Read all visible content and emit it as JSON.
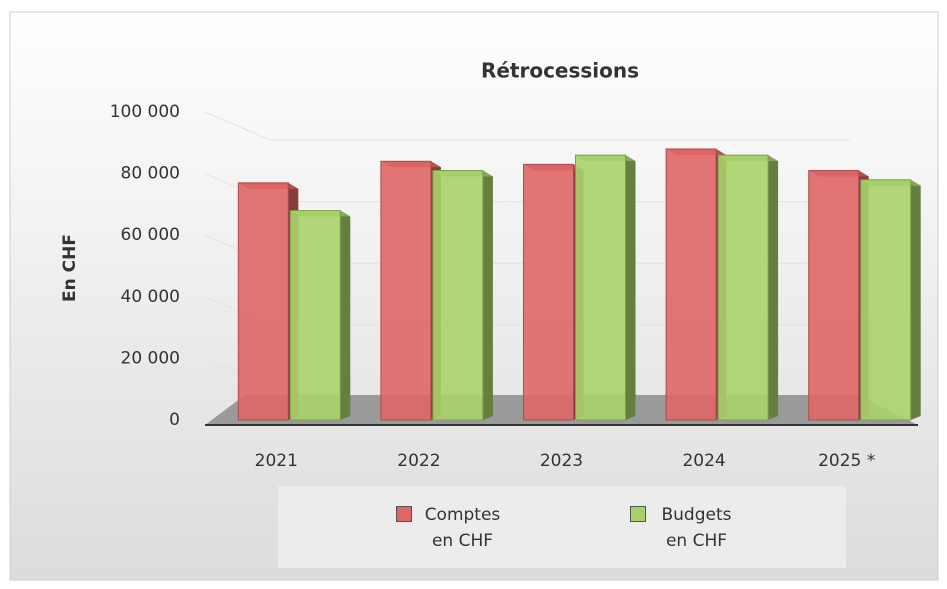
{
  "chart_data": {
    "type": "bar",
    "title": "Rétrocessions",
    "y_label": "En CHF",
    "categories": [
      "2021",
      "2022",
      "2023",
      "2024",
      "2025 *"
    ],
    "series": [
      {
        "name": "Comptes en CHF",
        "color": "#e06666",
        "values": [
          77000,
          84000,
          83000,
          88000,
          81000
        ]
      },
      {
        "name": "Budgets en CHF",
        "color": "#a9d36a",
        "values": [
          68000,
          81000,
          86000,
          86000,
          78000
        ]
      }
    ],
    "ylim": [
      0,
      100000
    ],
    "yticks": [
      0,
      {
        "value": 20000,
        "label": "20 000"
      },
      {
        "value": 40000,
        "label": "40 000"
      },
      {
        "value": 60000,
        "label": "60 000"
      },
      {
        "value": 80000,
        "label": "80 000"
      },
      {
        "value": 100000,
        "label": "100 000"
      }
    ],
    "grid": true,
    "legend": "bottom"
  }
}
